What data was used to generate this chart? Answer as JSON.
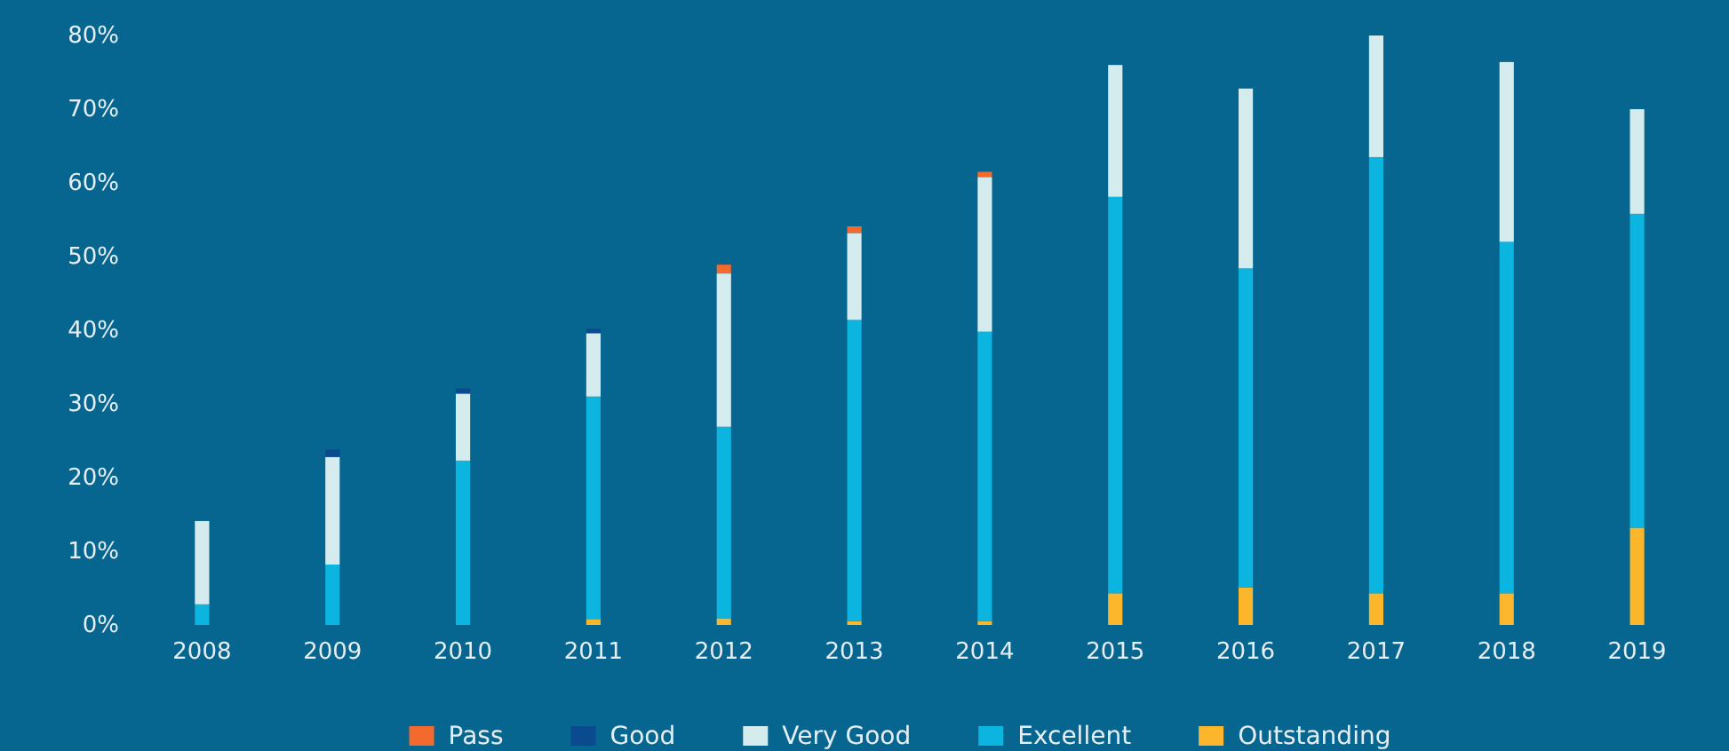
{
  "chart_data": {
    "type": "bar",
    "stacked": true,
    "legend": "bottom",
    "grid": false,
    "categories": [
      "2008",
      "2009",
      "2010",
      "2011",
      "2012",
      "2013",
      "2014",
      "2015",
      "2016",
      "2017",
      "2018",
      "2019"
    ],
    "ylim": [
      0,
      80
    ],
    "yticks": [
      {
        "value": 0,
        "label": "0%"
      },
      {
        "value": 10,
        "label": "10%"
      },
      {
        "value": 20,
        "label": "20%"
      },
      {
        "value": 30,
        "label": "30%"
      },
      {
        "value": 40,
        "label": "40%"
      },
      {
        "value": 50,
        "label": "50%"
      },
      {
        "value": 60,
        "label": "60%"
      },
      {
        "value": 70,
        "label": "70%"
      },
      {
        "value": 80,
        "label": "80%"
      }
    ],
    "series": [
      {
        "name": "Outstanding",
        "color": "#fbb62c",
        "values": [
          0,
          0,
          0,
          0.8,
          0.9,
          0.5,
          0.5,
          4.3,
          5.1,
          4.3,
          4.3,
          13.2
        ]
      },
      {
        "name": "Excellent",
        "color": "#0cb4e0",
        "values": [
          2.8,
          8.2,
          22.3,
          30.2,
          26.0,
          40.9,
          39.3,
          53.8,
          43.3,
          59.2,
          47.7,
          42.6
        ]
      },
      {
        "name": "Very Good",
        "color": "#d5ecee",
        "values": [
          11.3,
          14.6,
          9.1,
          8.6,
          20.8,
          11.8,
          21.0,
          17.9,
          24.4,
          16.5,
          24.4,
          14.2
        ]
      },
      {
        "name": "Good",
        "color": "#0a4a8f",
        "values": [
          0,
          1.0,
          0.7,
          0.6,
          0,
          0,
          0,
          0,
          0,
          0,
          0,
          0
        ]
      },
      {
        "name": "Pass",
        "color": "#f26a2e",
        "values": [
          0,
          0,
          0,
          0,
          1.2,
          0.9,
          0.7,
          0,
          0,
          0,
          0,
          0
        ]
      }
    ]
  }
}
